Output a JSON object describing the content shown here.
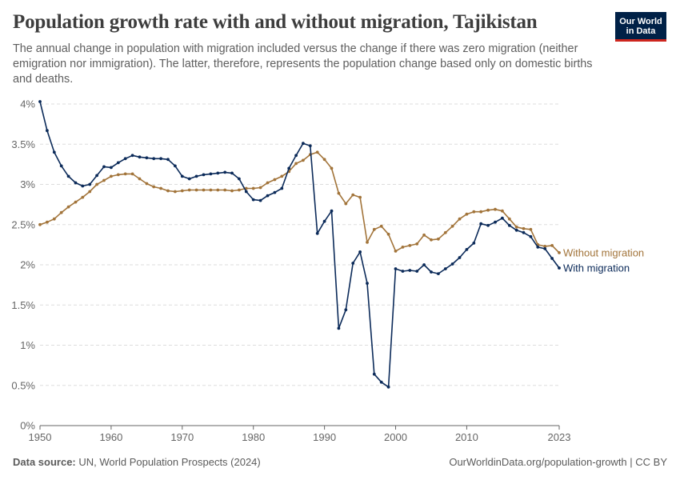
{
  "title": "Population growth rate with and without migration, Tajikistan",
  "subtitle": "The annual change in population with migration included versus the change if there was zero migration (neither emigration nor immigration). The latter, therefore, represents the population change based only on domestic births and deaths.",
  "logo": {
    "line1": "Our World",
    "line2": "in Data"
  },
  "footer": {
    "source_label": "Data source:",
    "source_text": "UN, World Population Prospects (2024)",
    "credit": "OurWorldinData.org/population-growth | CC BY"
  },
  "colors": {
    "with": "#0b2a59",
    "without": "#a2743a",
    "grid": "#dddddd",
    "axis": "#666666",
    "text": "#666666"
  },
  "chart_data": {
    "type": "line",
    "title": "Population growth rate with and without migration, Tajikistan",
    "xlim": [
      1950,
      2023
    ],
    "ylim": [
      0,
      4
    ],
    "x_ticks": [
      1950,
      1960,
      1970,
      1980,
      1990,
      2000,
      2010,
      2023
    ],
    "y_ticks": [
      0,
      0.5,
      1,
      1.5,
      2,
      2.5,
      3,
      3.5,
      4
    ],
    "y_tick_labels": [
      "0%",
      "0.5%",
      "1%",
      "1.5%",
      "2%",
      "2.5%",
      "3%",
      "3.5%",
      "4%"
    ],
    "grid": "horizontal dashed",
    "legend": "inline labels at line ends (right)",
    "x": [
      1950,
      1951,
      1952,
      1953,
      1954,
      1955,
      1956,
      1957,
      1958,
      1959,
      1960,
      1961,
      1962,
      1963,
      1964,
      1965,
      1966,
      1967,
      1968,
      1969,
      1970,
      1971,
      1972,
      1973,
      1974,
      1975,
      1976,
      1977,
      1978,
      1979,
      1980,
      1981,
      1982,
      1983,
      1984,
      1985,
      1986,
      1987,
      1988,
      1989,
      1990,
      1991,
      1992,
      1993,
      1994,
      1995,
      1996,
      1997,
      1998,
      1999,
      2000,
      2001,
      2002,
      2003,
      2004,
      2005,
      2006,
      2007,
      2008,
      2009,
      2010,
      2011,
      2012,
      2013,
      2014,
      2015,
      2016,
      2017,
      2018,
      2019,
      2020,
      2021,
      2022,
      2023
    ],
    "series": [
      {
        "name": "Without migration",
        "values": [
          2.5,
          2.53,
          2.57,
          2.65,
          2.72,
          2.78,
          2.84,
          2.91,
          3.0,
          3.05,
          3.1,
          3.12,
          3.13,
          3.13,
          3.07,
          3.01,
          2.97,
          2.95,
          2.92,
          2.91,
          2.92,
          2.93,
          2.93,
          2.93,
          2.93,
          2.93,
          2.93,
          2.92,
          2.93,
          2.95,
          2.95,
          2.96,
          3.02,
          3.06,
          3.1,
          3.16,
          3.26,
          3.3,
          3.37,
          3.4,
          3.31,
          3.2,
          2.89,
          2.76,
          2.87,
          2.84,
          2.28,
          2.44,
          2.48,
          2.38,
          2.17,
          2.22,
          2.24,
          2.26,
          2.37,
          2.31,
          2.32,
          2.4,
          2.48,
          2.57,
          2.63,
          2.66,
          2.66,
          2.68,
          2.69,
          2.67,
          2.57,
          2.47,
          2.45,
          2.44,
          2.25,
          2.23,
          2.24,
          2.15
        ]
      },
      {
        "name": "With migration",
        "values": [
          4.03,
          3.67,
          3.4,
          3.23,
          3.1,
          3.02,
          2.98,
          3.0,
          3.11,
          3.22,
          3.21,
          3.27,
          3.32,
          3.36,
          3.34,
          3.33,
          3.32,
          3.32,
          3.31,
          3.23,
          3.1,
          3.07,
          3.1,
          3.12,
          3.13,
          3.14,
          3.15,
          3.14,
          3.07,
          2.91,
          2.81,
          2.8,
          2.86,
          2.9,
          2.95,
          3.2,
          3.36,
          3.51,
          3.48,
          2.39,
          2.54,
          2.67,
          1.21,
          1.44,
          2.02,
          2.16,
          1.77,
          0.64,
          0.54,
          0.48,
          1.95,
          1.92,
          1.93,
          1.92,
          2.0,
          1.91,
          1.89,
          1.95,
          2.01,
          2.09,
          2.19,
          2.27,
          2.51,
          2.49,
          2.53,
          2.58,
          2.49,
          2.43,
          2.4,
          2.35,
          2.22,
          2.2,
          2.08,
          1.96
        ]
      }
    ]
  }
}
